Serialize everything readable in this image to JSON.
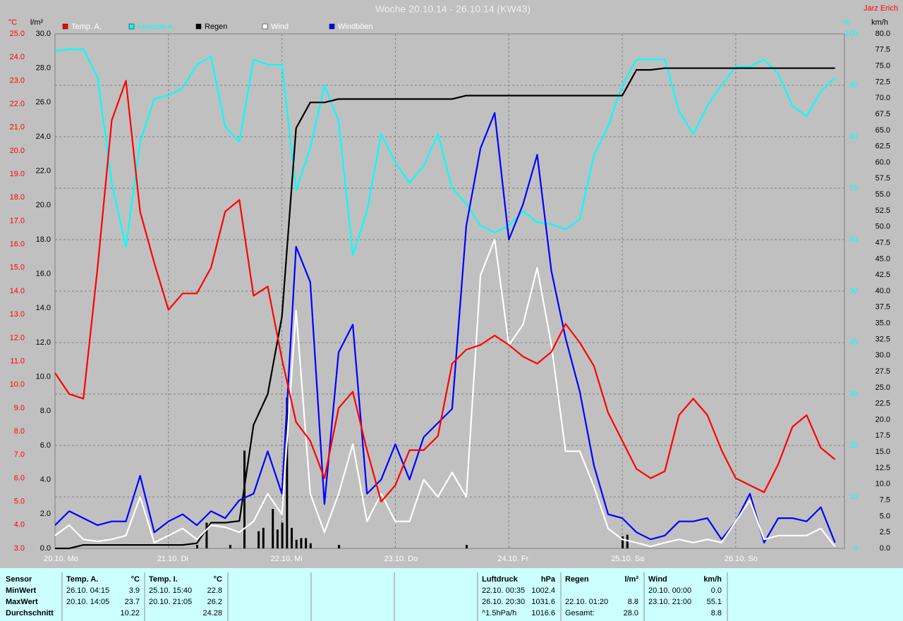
{
  "chart_data": {
    "type": "line",
    "title": "Woche 20.10.14 - 26.10.14 (KW43)",
    "author": "Jarz Erich",
    "grid": true,
    "xlim": [
      0,
      167
    ],
    "xticks": [
      {
        "value": 0,
        "label": "20.10. Mo"
      },
      {
        "value": 24,
        "label": "21.10. Di"
      },
      {
        "value": 48,
        "label": "22.10. Mi"
      },
      {
        "value": 72,
        "label": "23.10. Do"
      },
      {
        "value": 96,
        "label": "24.10. Fr"
      },
      {
        "value": 120,
        "label": "25.10. Sa"
      },
      {
        "value": 144,
        "label": "26.10. So"
      }
    ],
    "axes": {
      "temp": {
        "label": "°C",
        "color": "#ff0000",
        "lim": [
          3,
          25
        ],
        "ticks": [
          {
            "value": 3,
            "label": "3.0"
          },
          {
            "value": 4,
            "label": "4.0"
          },
          {
            "value": 5,
            "label": "5.0"
          },
          {
            "value": 6,
            "label": "6.0"
          },
          {
            "value": 7,
            "label": "7.0"
          },
          {
            "value": 8,
            "label": "8.0"
          },
          {
            "value": 9,
            "label": "9.0"
          },
          {
            "value": 10,
            "label": "10.0"
          },
          {
            "value": 11,
            "label": "11.0"
          },
          {
            "value": 12,
            "label": "12.0"
          },
          {
            "value": 13,
            "label": "13.0"
          },
          {
            "value": 14,
            "label": "14.0"
          },
          {
            "value": 15,
            "label": "15.0"
          },
          {
            "value": 16,
            "label": "16.0"
          },
          {
            "value": 17,
            "label": "17.0"
          },
          {
            "value": 18,
            "label": "18.0"
          },
          {
            "value": 19,
            "label": "19.0"
          },
          {
            "value": 20,
            "label": "20.0"
          },
          {
            "value": 21,
            "label": "21.0"
          },
          {
            "value": 22,
            "label": "22.0"
          },
          {
            "value": 23,
            "label": "23.0"
          },
          {
            "value": 24,
            "label": "24.0"
          },
          {
            "value": 25,
            "label": "25.0"
          }
        ]
      },
      "rain": {
        "label": "l/m²",
        "color": "#000000",
        "lim": [
          0,
          30
        ],
        "ticks": [
          {
            "value": 0,
            "label": "0.0"
          },
          {
            "value": 2,
            "label": "2.0"
          },
          {
            "value": 4,
            "label": "4.0"
          },
          {
            "value": 6,
            "label": "6.0"
          },
          {
            "value": 8,
            "label": "8.0"
          },
          {
            "value": 10,
            "label": "10.0"
          },
          {
            "value": 12,
            "label": "12.0"
          },
          {
            "value": 14,
            "label": "14.0"
          },
          {
            "value": 16,
            "label": "16.0"
          },
          {
            "value": 18,
            "label": "18.0"
          },
          {
            "value": 20,
            "label": "20.0"
          },
          {
            "value": 22,
            "label": "22.0"
          },
          {
            "value": 24,
            "label": "24.0"
          },
          {
            "value": 26,
            "label": "26.0"
          },
          {
            "value": 28,
            "label": "28.0"
          },
          {
            "value": 30,
            "label": "30.0"
          }
        ]
      },
      "hum": {
        "label": "%",
        "color": "#00ffff",
        "lim": [
          0,
          100
        ],
        "ticks": [
          0,
          10,
          20,
          30,
          40,
          50,
          60,
          70,
          80,
          90,
          100
        ]
      },
      "wind": {
        "label": "km/h",
        "color": "#000000",
        "lim": [
          0,
          80
        ],
        "ticks": [
          {
            "value": 0,
            "label": "0.0"
          },
          {
            "value": 2.5,
            "label": "2.5"
          },
          {
            "value": 5,
            "label": "5.0"
          },
          {
            "value": 7.5,
            "label": "7.5"
          },
          {
            "value": 10,
            "label": "10.0"
          },
          {
            "value": 12.5,
            "label": "12.5"
          },
          {
            "value": 15,
            "label": "15.0"
          },
          {
            "value": 17.5,
            "label": "17.5"
          },
          {
            "value": 20,
            "label": "20.0"
          },
          {
            "value": 22.5,
            "label": "22.5"
          },
          {
            "value": 25,
            "label": "25.0"
          },
          {
            "value": 27.5,
            "label": "27.5"
          },
          {
            "value": 30,
            "label": "30.0"
          },
          {
            "value": 32.5,
            "label": "32.5"
          },
          {
            "value": 35,
            "label": "35.0"
          },
          {
            "value": 37.5,
            "label": "37.5"
          },
          {
            "value": 40,
            "label": "40.0"
          },
          {
            "value": 42.5,
            "label": "42.5"
          },
          {
            "value": 45,
            "label": "45.0"
          },
          {
            "value": 47.5,
            "label": "47.5"
          },
          {
            "value": 50,
            "label": "50.0"
          },
          {
            "value": 52.5,
            "label": "52.5"
          },
          {
            "value": 55,
            "label": "55.0"
          },
          {
            "value": 57.5,
            "label": "57.5"
          },
          {
            "value": 60,
            "label": "60.0"
          },
          {
            "value": 62.5,
            "label": "62.5"
          },
          {
            "value": 65,
            "label": "65.0"
          },
          {
            "value": 67.5,
            "label": "67.5"
          },
          {
            "value": 70,
            "label": "70.0"
          },
          {
            "value": 72.5,
            "label": "72.5"
          },
          {
            "value": 75,
            "label": "75.0"
          },
          {
            "value": 77.5,
            "label": "77.5"
          },
          {
            "value": 80,
            "label": "80.0"
          }
        ]
      }
    },
    "x": [
      0,
      3,
      6,
      9,
      12,
      15,
      18,
      21,
      24,
      27,
      30,
      33,
      36,
      39,
      42,
      45,
      48,
      51,
      54,
      57,
      60,
      63,
      66,
      69,
      72,
      75,
      78,
      81,
      84,
      87,
      90,
      93,
      96,
      99,
      102,
      105,
      108,
      111,
      114,
      117,
      120,
      123,
      126,
      129,
      132,
      135,
      138,
      141,
      144,
      147,
      150,
      153,
      156,
      159,
      162,
      165
    ],
    "series": [
      {
        "name": "Temp. A.",
        "color": "#ff0000",
        "axis": "temp",
        "values": [
          10.5,
          9.6,
          9.4,
          15.0,
          21.3,
          23.0,
          17.4,
          15.2,
          13.2,
          13.9,
          13.9,
          15.0,
          17.4,
          17.9,
          13.8,
          14.2,
          11.1,
          8.4,
          7.6,
          6.0,
          9.0,
          9.7,
          7.2,
          5.0,
          5.7,
          7.2,
          7.2,
          7.8,
          10.9,
          11.5,
          11.7,
          12.1,
          11.7,
          11.2,
          10.9,
          11.4,
          12.6,
          11.8,
          10.8,
          8.8,
          7.6,
          6.4,
          6.0,
          6.3,
          8.7,
          9.4,
          8.7,
          7.2,
          6.0,
          5.7,
          5.4,
          6.6,
          8.2,
          8.7,
          7.3,
          6.8
        ]
      },
      {
        "name": "Feuchte A.",
        "color": "#00ffff",
        "axis": "hum",
        "values": [
          96.7,
          97,
          97,
          91.5,
          71,
          58.6,
          79,
          87.4,
          88,
          89.5,
          94,
          95.6,
          82,
          79,
          95,
          94,
          94,
          69.6,
          77.8,
          90,
          83,
          57,
          65.5,
          80.5,
          75,
          71,
          74.4,
          80.5,
          70,
          67,
          62.7,
          61.4,
          62.7,
          65.5,
          63.4,
          63,
          62,
          64,
          76.4,
          82,
          90,
          95,
          95,
          95,
          85,
          80.5,
          86,
          90,
          93.6,
          93.6,
          95,
          92.2,
          86,
          84,
          88.8,
          91.5
        ]
      },
      {
        "name": "Regen",
        "color": "#000000",
        "axis": "rain",
        "values": [
          0,
          0,
          0.2,
          0.2,
          0.2,
          0.2,
          0.2,
          0.2,
          0.2,
          0.2,
          0.3,
          1.5,
          1.5,
          1.6,
          7.2,
          9.0,
          13.5,
          24.5,
          26.0,
          26.0,
          26.2,
          26.2,
          26.2,
          26.2,
          26.2,
          26.2,
          26.2,
          26.2,
          26.2,
          26.4,
          26.4,
          26.4,
          26.4,
          26.4,
          26.4,
          26.4,
          26.4,
          26.4,
          26.4,
          26.4,
          26.4,
          27.9,
          27.9,
          28.0,
          28.0,
          28.0,
          28.0,
          28.0,
          28.0,
          28.0,
          28.0,
          28.0,
          28.0,
          28.0,
          28.0,
          28.0
        ]
      },
      {
        "name": "Wind",
        "color": "#ffffff",
        "axis": "wind",
        "values": [
          2.0,
          3.6,
          1.4,
          1.1,
          1.4,
          2.0,
          8.0,
          0.9,
          2.0,
          3.1,
          1.4,
          3.6,
          3.3,
          2.5,
          4.2,
          8.5,
          5.3,
          37.0,
          8.5,
          2.5,
          8.5,
          16.2,
          4.2,
          8.5,
          4.2,
          4.2,
          10.7,
          8.0,
          11.8,
          8.0,
          42.5,
          48.0,
          31.6,
          34.8,
          43.6,
          31.6,
          15.1,
          15.1,
          9.6,
          3.1,
          1.4,
          0.9,
          0.3,
          0.9,
          1.4,
          0.9,
          1.4,
          0.9,
          4.2,
          7.5,
          1.4,
          2.0,
          2.0,
          2.0,
          3.1,
          0.3
        ]
      },
      {
        "name": "Windböen",
        "color": "#0000ff",
        "axis": "wind",
        "values": [
          3.6,
          5.8,
          4.7,
          3.6,
          4.2,
          4.2,
          11.3,
          2.5,
          4.2,
          5.3,
          3.6,
          5.8,
          4.7,
          7.5,
          8.5,
          15.1,
          8.5,
          46.9,
          41.4,
          6.9,
          30.5,
          34.8,
          8.5,
          10.7,
          16.2,
          10.7,
          17.3,
          19.5,
          21.7,
          50.2,
          62.2,
          67.7,
          48.0,
          53.5,
          61.2,
          43.1,
          32.7,
          24.4,
          12.9,
          5.3,
          4.7,
          2.5,
          1.4,
          2.0,
          4.2,
          4.2,
          4.7,
          1.4,
          4.2,
          8.5,
          0.9,
          4.7,
          4.7,
          4.2,
          6.4,
          0.9
        ]
      }
    ],
    "rain_bars": {
      "color": "#000000",
      "axis": "rain",
      "x": [
        30,
        32,
        37,
        40,
        43,
        44,
        46,
        47,
        48,
        49,
        50,
        51,
        52,
        53,
        54,
        60,
        87,
        120,
        121
      ],
      "values": [
        0.2,
        1.5,
        0.2,
        5.7,
        1.0,
        1.2,
        2.3,
        1.1,
        1.5,
        8.8,
        1.2,
        0.5,
        0.6,
        0.6,
        0.3,
        0.2,
        0.2,
        0.7,
        0.8
      ]
    }
  },
  "table": {
    "row_labels": [
      "Sensor",
      "MinWert",
      "MaxWert",
      "Durchschnitt"
    ],
    "groups": [
      {
        "name": "Temp. A.",
        "unit": "°C",
        "cells": [
          [
            "26.10.  04:15",
            "3.9"
          ],
          [
            "20.10.  14:05",
            "23.7"
          ],
          [
            null,
            "10.22"
          ]
        ]
      },
      {
        "name": "Temp. I.",
        "unit": "°C",
        "cells": [
          [
            "25.10.  15:40",
            "22.8"
          ],
          [
            "20.10.  21:05",
            "26.2"
          ],
          [
            null,
            "24.28"
          ]
        ]
      },
      {
        "name": "Luftdruck",
        "unit": "hPa",
        "cells": [
          [
            "22.10.  00:35",
            "1002.4"
          ],
          [
            "26.10.  20:30",
            "1031.6"
          ],
          [
            "^1.5hPa/h",
            "1016.6"
          ]
        ]
      },
      {
        "name": "Regen",
        "unit": "l/m²",
        "cells": [
          [
            null,
            null
          ],
          [
            "22.10.  01:20",
            "8.8"
          ],
          [
            "Gesamt:",
            "28.0"
          ]
        ]
      },
      {
        "name": "Wind",
        "unit": "km/h",
        "cells": [
          [
            "20.10.  00:00",
            "0.0"
          ],
          [
            "23.10.  21:00",
            "55.1"
          ],
          [
            null,
            "8.8"
          ]
        ]
      }
    ]
  }
}
